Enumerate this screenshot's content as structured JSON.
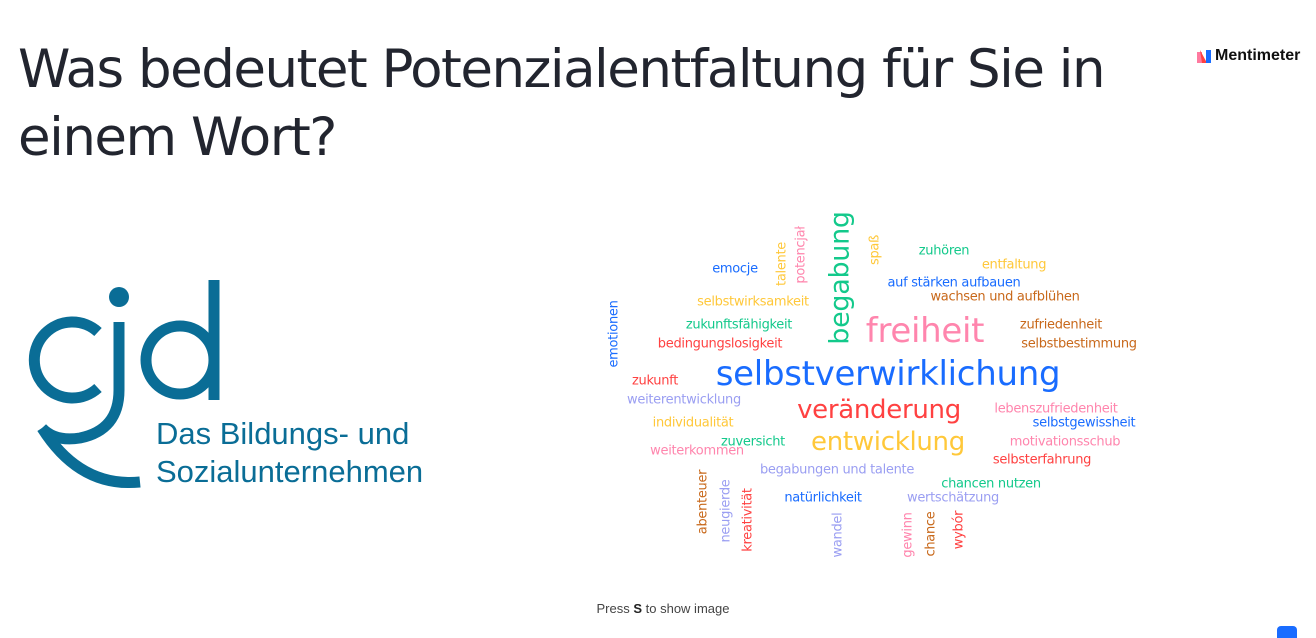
{
  "question": {
    "title": "Was bedeutet Potenzialentfaltung für Sie in einem Wort?"
  },
  "brand": {
    "name": "Mentimeter",
    "icon": "mentimeter-logo-icon"
  },
  "organization": {
    "logo_text": "cjd",
    "tagline_line1": "Das Bildungs- und",
    "tagline_line2": "Sozialunternehmen",
    "color": "#0a6d96"
  },
  "colors": {
    "blue": "#196cff",
    "green": "#13c98b",
    "pink": "#ff85ad",
    "yellow": "#ffc83a",
    "orange": "#c8681a",
    "red": "#ff4141",
    "lavender": "#9a9ef2"
  },
  "word_cloud": {
    "words": [
      {
        "text": "begabung",
        "color": "green"
      },
      {
        "text": "freiheit",
        "color": "pink"
      },
      {
        "text": "selbstverwirklichung",
        "color": "blue"
      },
      {
        "text": "veränderung",
        "color": "red"
      },
      {
        "text": "entwicklung",
        "color": "yellow"
      },
      {
        "text": "emocje",
        "color": "blue"
      },
      {
        "text": "talente",
        "color": "yellow"
      },
      {
        "text": "potencjał",
        "color": "pink"
      },
      {
        "text": "spaß",
        "color": "yellow"
      },
      {
        "text": "zuhören",
        "color": "green"
      },
      {
        "text": "entfaltung",
        "color": "yellow"
      },
      {
        "text": "auf stärken aufbauen",
        "color": "blue"
      },
      {
        "text": "wachsen und aufblühen",
        "color": "orange"
      },
      {
        "text": "selbstwirksamkeit",
        "color": "yellow"
      },
      {
        "text": "zukunftsfähigkeit",
        "color": "green"
      },
      {
        "text": "zufriedenheit",
        "color": "orange"
      },
      {
        "text": "bedingungslosigkeit",
        "color": "red"
      },
      {
        "text": "selbstbestimmung",
        "color": "orange"
      },
      {
        "text": "emotionen",
        "color": "blue"
      },
      {
        "text": "zukunft",
        "color": "red"
      },
      {
        "text": "weiterentwicklung",
        "color": "lavender"
      },
      {
        "text": "lebenszufriedenheit",
        "color": "pink"
      },
      {
        "text": "individualität",
        "color": "yellow"
      },
      {
        "text": "selbstgewissheit",
        "color": "blue"
      },
      {
        "text": "zuversicht",
        "color": "green"
      },
      {
        "text": "motivationsschub",
        "color": "pink"
      },
      {
        "text": "weiterkommen",
        "color": "pink"
      },
      {
        "text": "selbsterfahrung",
        "color": "red"
      },
      {
        "text": "begabungen und talente",
        "color": "lavender"
      },
      {
        "text": "chancen nutzen",
        "color": "green"
      },
      {
        "text": "natürlichkeit",
        "color": "blue"
      },
      {
        "text": "wertschätzung",
        "color": "lavender"
      },
      {
        "text": "abenteuer",
        "color": "orange"
      },
      {
        "text": "neugierde",
        "color": "lavender"
      },
      {
        "text": "kreativität",
        "color": "red"
      },
      {
        "text": "wandel",
        "color": "lavender"
      },
      {
        "text": "gewinn",
        "color": "pink"
      },
      {
        "text": "chance",
        "color": "orange"
      },
      {
        "text": "wybór",
        "color": "red"
      }
    ]
  },
  "footer": {
    "hint_prefix": "Press ",
    "hint_key": "S",
    "hint_suffix": " to show image"
  }
}
